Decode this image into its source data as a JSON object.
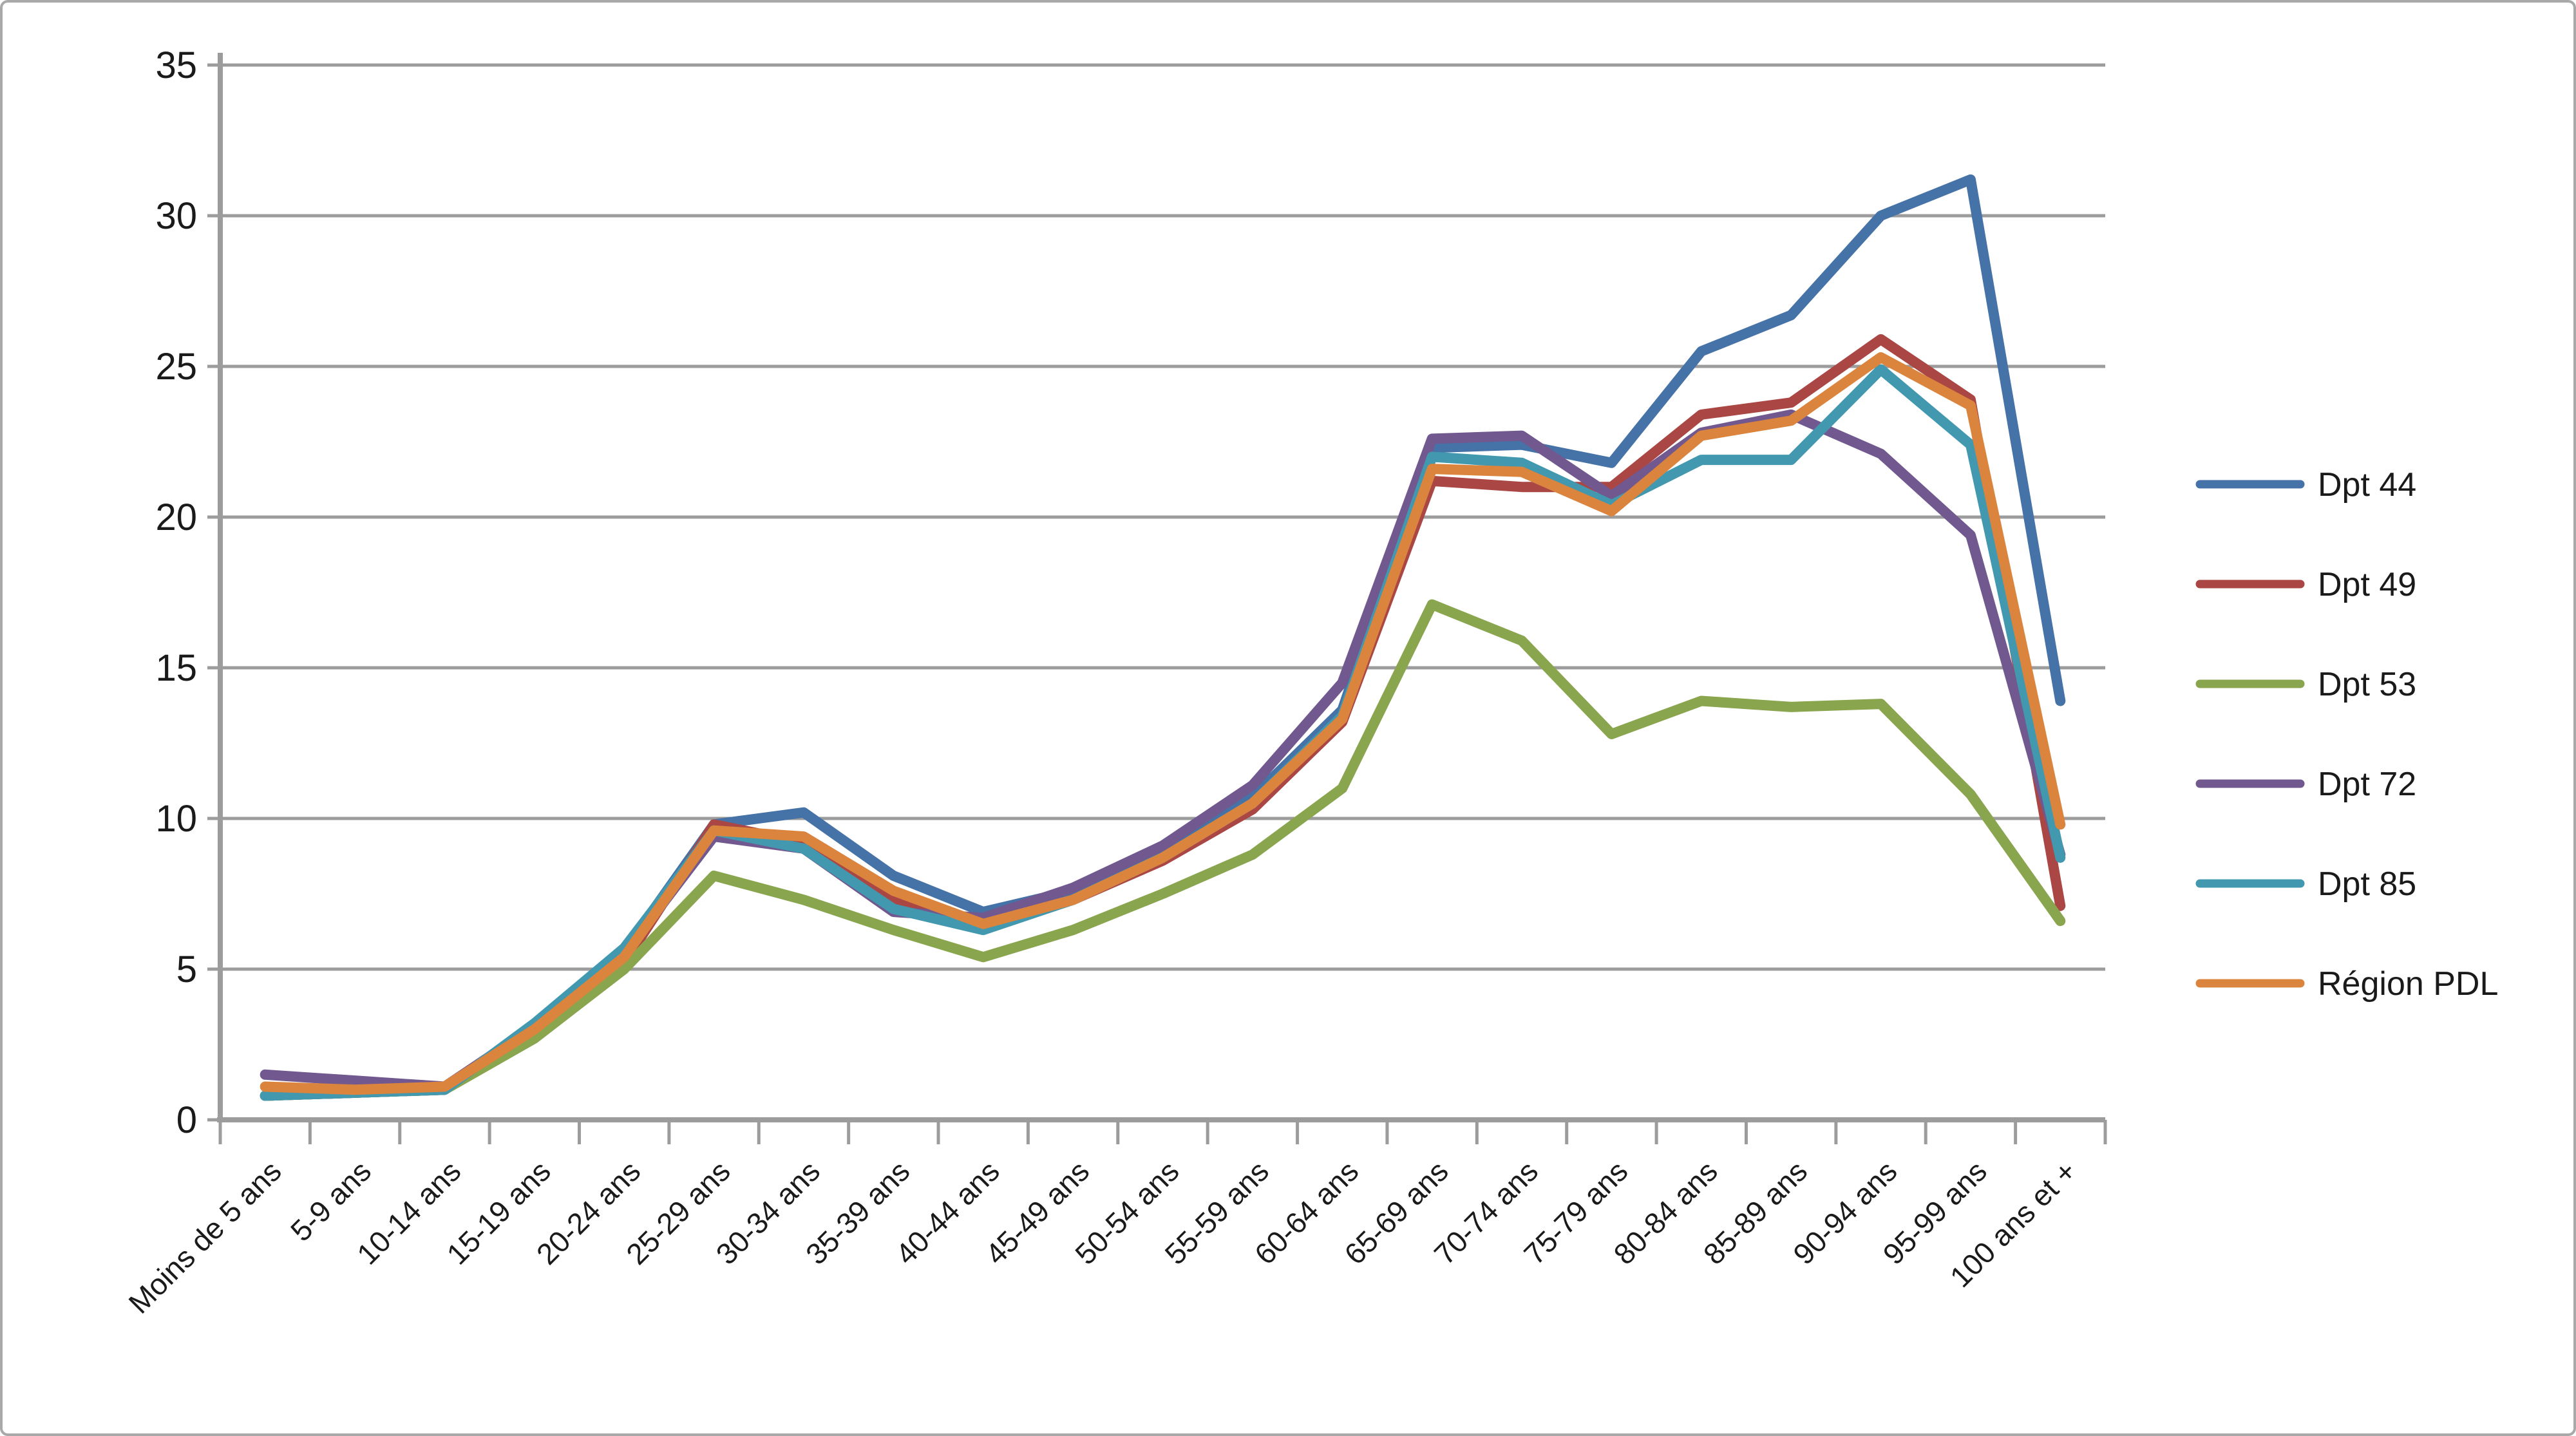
{
  "chart_data": {
    "type": "line",
    "title": "",
    "xlabel": "",
    "ylabel": "",
    "ylim": [
      0,
      35
    ],
    "ytick_step": 5,
    "grid": true,
    "legend_position": "right",
    "categories": [
      "Moins de 5 ans",
      "5-9 ans",
      "10-14 ans",
      "15-19 ans",
      "20-24 ans",
      "25-29 ans",
      "30-34 ans",
      "35-39 ans",
      "40-44 ans",
      "45-49 ans",
      "50-54 ans",
      "55-59 ans",
      "60-64 ans",
      "65-69 ans",
      "70-74 ans",
      "75-79 ans",
      "80-84 ans",
      "85-89 ans",
      "90-94 ans",
      "95-99 ans",
      "100 ans et +"
    ],
    "series": [
      {
        "name": "Dpt 44",
        "color": "#4572A7",
        "values": [
          0.8,
          0.9,
          1.0,
          3.1,
          5.6,
          9.8,
          10.2,
          8.1,
          6.9,
          7.6,
          8.9,
          10.7,
          13.6,
          22.3,
          22.4,
          21.8,
          25.5,
          26.7,
          30.0,
          31.2,
          13.9
        ]
      },
      {
        "name": "Dpt 49",
        "color": "#AA4643",
        "values": [
          0.8,
          0.9,
          1.0,
          3.0,
          5.2,
          9.8,
          9.2,
          7.3,
          6.5,
          7.3,
          8.6,
          10.3,
          13.2,
          21.2,
          21.0,
          21.0,
          23.4,
          23.8,
          25.9,
          23.9,
          7.1
        ]
      },
      {
        "name": "Dpt 53",
        "color": "#89A54E",
        "values": [
          0.8,
          0.9,
          1.0,
          2.7,
          5.0,
          8.1,
          7.3,
          6.3,
          5.4,
          6.3,
          7.5,
          8.8,
          11.0,
          17.1,
          15.9,
          12.8,
          13.9,
          13.7,
          13.8,
          10.8,
          6.6
        ]
      },
      {
        "name": "Dpt 72",
        "color": "#71588F",
        "values": [
          1.5,
          1.3,
          1.1,
          3.1,
          5.5,
          9.4,
          9.0,
          6.9,
          6.7,
          7.7,
          9.1,
          11.1,
          14.5,
          22.6,
          22.7,
          20.7,
          22.8,
          23.4,
          22.1,
          19.4,
          8.8
        ]
      },
      {
        "name": "Dpt 85",
        "color": "#4198AF",
        "values": [
          0.8,
          0.9,
          1.0,
          3.2,
          5.7,
          9.6,
          9.0,
          7.0,
          6.3,
          7.3,
          8.7,
          10.5,
          13.4,
          22.0,
          21.8,
          20.4,
          21.9,
          21.9,
          24.9,
          22.4,
          8.7
        ]
      },
      {
        "name": "Région PDL",
        "color": "#DB843D",
        "values": [
          1.1,
          1.0,
          1.1,
          3.0,
          5.4,
          9.6,
          9.4,
          7.6,
          6.5,
          7.3,
          8.7,
          10.5,
          13.3,
          21.6,
          21.5,
          20.2,
          22.7,
          23.2,
          25.3,
          23.7,
          9.8
        ]
      }
    ]
  },
  "axes": {
    "y_tick_labels": [
      "0",
      "5",
      "10",
      "15",
      "20",
      "25",
      "30",
      "35"
    ]
  },
  "style": {
    "grid_color": "#9c9c9c",
    "background": "#ffffff"
  }
}
